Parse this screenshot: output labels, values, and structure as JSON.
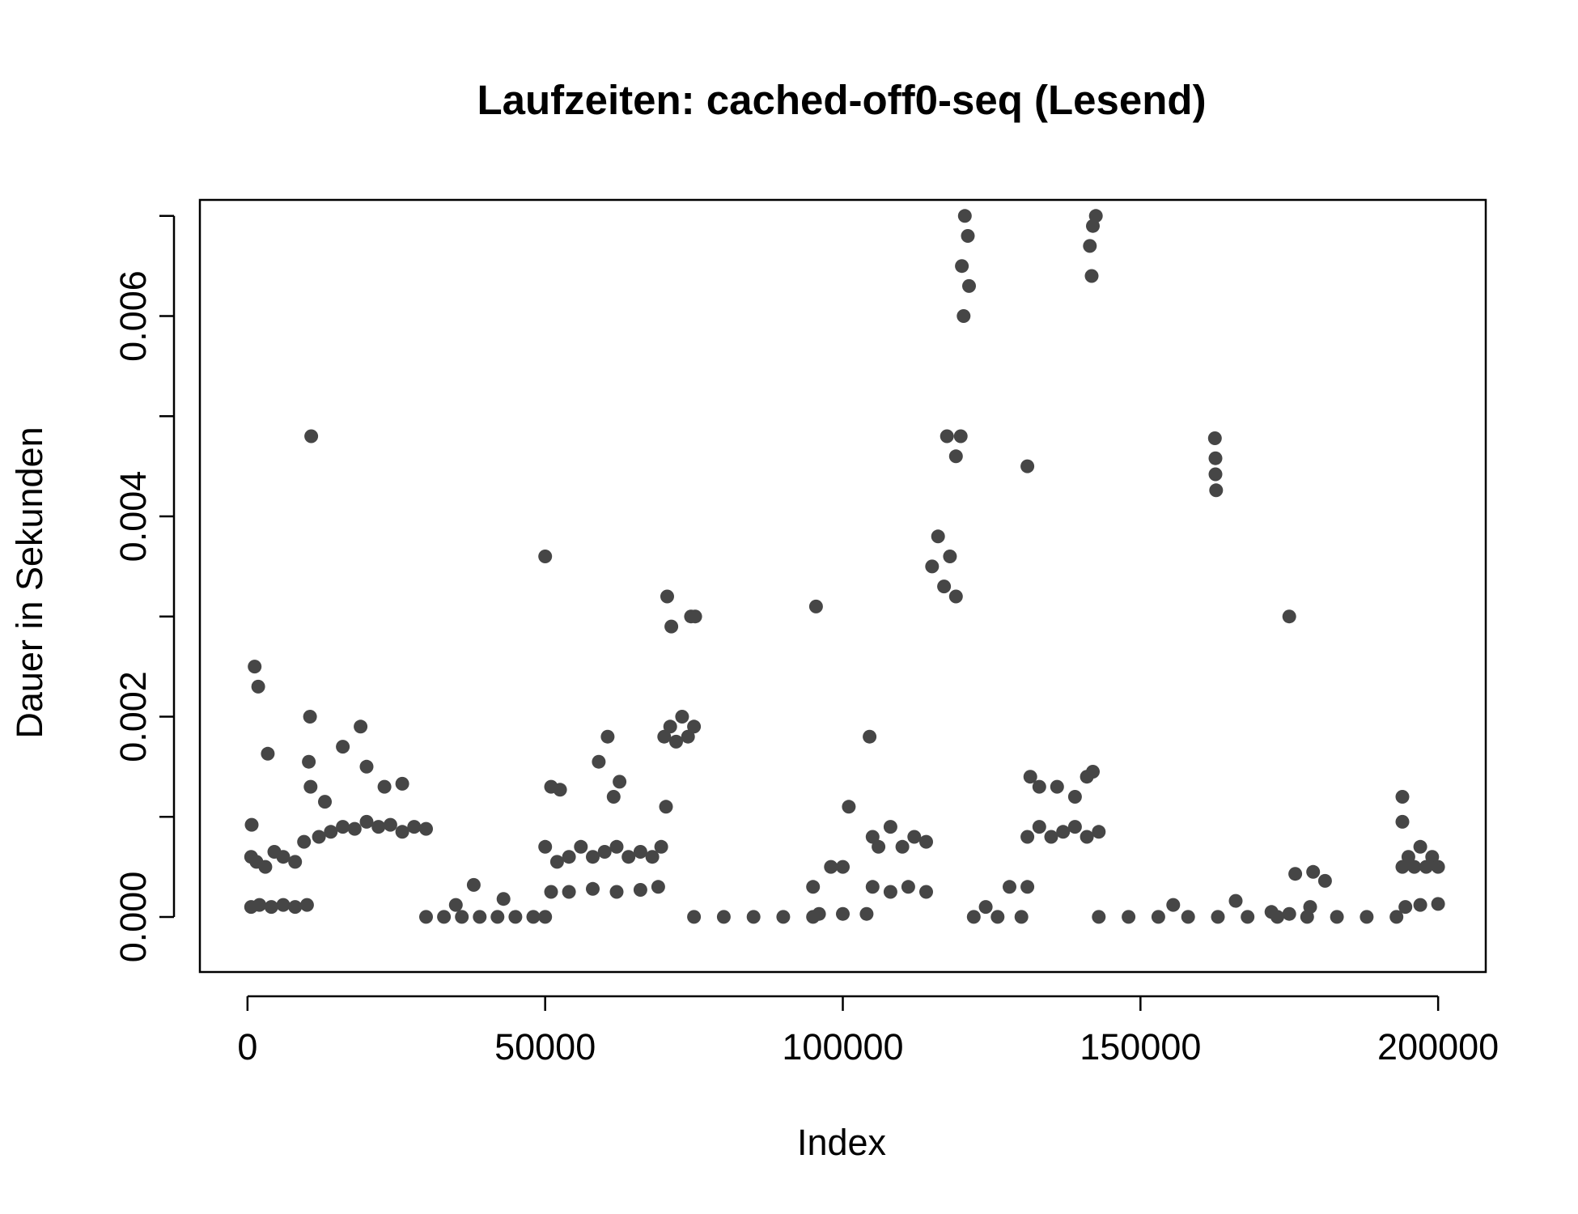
{
  "chart_data": {
    "type": "scatter",
    "title": "Laufzeiten: cached-off0-seq (Lesend)",
    "xlabel": "Index",
    "ylabel": "Dauer in Sekunden",
    "xlim": [
      -8000,
      208000
    ],
    "ylim": [
      -0.00055,
      0.00716
    ],
    "x_ticks": [
      0,
      50000,
      100000,
      150000,
      200000
    ],
    "x_tick_labels": [
      "0",
      "50000",
      "100000",
      "150000",
      "200000"
    ],
    "y_ticks": [
      0,
      0.001,
      0.002,
      0.003,
      0.004,
      0.005,
      0.006,
      0.007
    ],
    "y_tick_labels": [
      "0.000",
      "",
      "0.002",
      "",
      "0.004",
      "",
      "0.006",
      ""
    ],
    "grid": false,
    "legend": "none",
    "point_color": "#464646",
    "series": [
      {
        "values": [
          [
            600,
            0.0001
          ],
          [
            2000,
            0.00012
          ],
          [
            4000,
            0.0001
          ],
          [
            6000,
            0.00012
          ],
          [
            8000,
            0.0001
          ],
          [
            10000,
            0.00012
          ],
          [
            600,
            0.0006
          ],
          [
            1500,
            0.00055
          ],
          [
            3000,
            0.0005
          ],
          [
            4500,
            0.00065
          ],
          [
            6000,
            0.0006
          ],
          [
            8000,
            0.00055
          ],
          [
            9500,
            0.00075
          ],
          [
            700,
            0.00092
          ],
          [
            1200,
            0.0025
          ],
          [
            1800,
            0.0023
          ],
          [
            3400,
            0.00163
          ],
          [
            10700,
            0.0048
          ],
          [
            10500,
            0.002
          ],
          [
            10300,
            0.00155
          ],
          [
            10600,
            0.0013
          ],
          [
            12000,
            0.0008
          ],
          [
            14000,
            0.00085
          ],
          [
            16000,
            0.0009
          ],
          [
            18000,
            0.00088
          ],
          [
            20000,
            0.00095
          ],
          [
            22000,
            0.0009
          ],
          [
            24000,
            0.00092
          ],
          [
            26000,
            0.00085
          ],
          [
            28000,
            0.0009
          ],
          [
            30000,
            0.00088
          ],
          [
            13000,
            0.00115
          ],
          [
            16000,
            0.0017
          ],
          [
            19000,
            0.0019
          ],
          [
            20000,
            0.0015
          ],
          [
            23000,
            0.0013
          ],
          [
            26000,
            0.00133
          ],
          [
            30000,
            0
          ],
          [
            33000,
            0
          ],
          [
            36000,
            0
          ],
          [
            39000,
            0
          ],
          [
            42000,
            0
          ],
          [
            45000,
            0
          ],
          [
            48000,
            0
          ],
          [
            50000,
            0
          ],
          [
            35000,
            0.00012
          ],
          [
            38000,
            0.00032
          ],
          [
            43000,
            0.00018
          ],
          [
            50000,
            0.0036
          ],
          [
            50000,
            0.0007
          ],
          [
            52000,
            0.00055
          ],
          [
            54000,
            0.0006
          ],
          [
            56000,
            0.0007
          ],
          [
            58000,
            0.0006
          ],
          [
            60000,
            0.00065
          ],
          [
            62000,
            0.0007
          ],
          [
            64000,
            0.0006
          ],
          [
            66000,
            0.00065
          ],
          [
            68000,
            0.0006
          ],
          [
            69500,
            0.0007
          ],
          [
            51000,
            0.00025
          ],
          [
            54000,
            0.00025
          ],
          [
            58000,
            0.00028
          ],
          [
            62000,
            0.00025
          ],
          [
            66000,
            0.00027
          ],
          [
            69000,
            0.0003
          ],
          [
            51000,
            0.0013
          ],
          [
            52500,
            0.00127
          ],
          [
            59000,
            0.00155
          ],
          [
            60500,
            0.0018
          ],
          [
            62500,
            0.00135
          ],
          [
            61500,
            0.0012
          ],
          [
            70000,
            0.0018
          ],
          [
            71000,
            0.0019
          ],
          [
            72000,
            0.00175
          ],
          [
            73000,
            0.002
          ],
          [
            74000,
            0.0018
          ],
          [
            75000,
            0.0019
          ],
          [
            70500,
            0.0032
          ],
          [
            71200,
            0.0029
          ],
          [
            74500,
            0.003
          ],
          [
            75200,
            0.003
          ],
          [
            70300,
            0.0011
          ],
          [
            75000,
            0
          ],
          [
            80000,
            0
          ],
          [
            85000,
            0
          ],
          [
            90000,
            0
          ],
          [
            95000,
            0
          ],
          [
            95000,
            0.0003
          ],
          [
            95500,
            0.0031
          ],
          [
            98000,
            0.0005
          ],
          [
            101000,
            0.0011
          ],
          [
            100000,
            0.0005
          ],
          [
            104500,
            0.0018
          ],
          [
            96000,
            3e-05
          ],
          [
            100000,
            3e-05
          ],
          [
            104000,
            3e-05
          ],
          [
            105000,
            0.0008
          ],
          [
            106000,
            0.0007
          ],
          [
            108000,
            0.0009
          ],
          [
            110000,
            0.0007
          ],
          [
            112000,
            0.0008
          ],
          [
            114000,
            0.00075
          ],
          [
            105000,
            0.0003
          ],
          [
            108000,
            0.00025
          ],
          [
            111000,
            0.0003
          ],
          [
            114000,
            0.00025
          ],
          [
            115000,
            0.0035
          ],
          [
            116000,
            0.0038
          ],
          [
            117000,
            0.0033
          ],
          [
            118000,
            0.0036
          ],
          [
            119000,
            0.0032
          ],
          [
            117500,
            0.0048
          ],
          [
            119800,
            0.0048
          ],
          [
            119000,
            0.0046
          ],
          [
            120000,
            0.0065
          ],
          [
            120500,
            0.007
          ],
          [
            121000,
            0.0068
          ],
          [
            121200,
            0.0063
          ],
          [
            120300,
            0.006
          ],
          [
            122000,
            0
          ],
          [
            124000,
            0.0001
          ],
          [
            126000,
            0
          ],
          [
            128000,
            0.0003
          ],
          [
            130000,
            0
          ],
          [
            131000,
            0.0003
          ],
          [
            131000,
            0.0045
          ],
          [
            131500,
            0.0014
          ],
          [
            131000,
            0.0008
          ],
          [
            133000,
            0.0009
          ],
          [
            135000,
            0.0008
          ],
          [
            137000,
            0.00085
          ],
          [
            139000,
            0.0009
          ],
          [
            141000,
            0.0008
          ],
          [
            143000,
            0.00085
          ],
          [
            133000,
            0.0013
          ],
          [
            136000,
            0.0013
          ],
          [
            139000,
            0.0012
          ],
          [
            141000,
            0.0014
          ],
          [
            142000,
            0.00145
          ],
          [
            141500,
            0.0067
          ],
          [
            142000,
            0.0069
          ],
          [
            142500,
            0.007
          ],
          [
            141800,
            0.0064
          ],
          [
            143000,
            0
          ],
          [
            148000,
            0
          ],
          [
            153000,
            0
          ],
          [
            158000,
            0
          ],
          [
            163000,
            0
          ],
          [
            168000,
            0
          ],
          [
            173000,
            0
          ],
          [
            178000,
            0
          ],
          [
            183000,
            0
          ],
          [
            188000,
            0
          ],
          [
            193000,
            0
          ],
          [
            155500,
            0.00012
          ],
          [
            166000,
            0.00016
          ],
          [
            175000,
            3e-05
          ],
          [
            176000,
            0.00043
          ],
          [
            179000,
            0.00045
          ],
          [
            181000,
            0.00036
          ],
          [
            172000,
            5e-05
          ],
          [
            178500,
            0.0001
          ],
          [
            162500,
            0.00478
          ],
          [
            162600,
            0.00458
          ],
          [
            162600,
            0.00442
          ],
          [
            162700,
            0.00426
          ],
          [
            175000,
            0.003
          ],
          [
            194000,
            0.0005
          ],
          [
            195000,
            0.0006
          ],
          [
            196000,
            0.0005
          ],
          [
            197000,
            0.0007
          ],
          [
            198000,
            0.0005
          ],
          [
            199000,
            0.0006
          ],
          [
            200000,
            0.0005
          ],
          [
            194000,
            0.0012
          ],
          [
            194000,
            0.00095
          ],
          [
            194500,
            0.0001
          ],
          [
            197000,
            0.00012
          ],
          [
            200000,
            0.00013
          ]
        ]
      }
    ]
  }
}
